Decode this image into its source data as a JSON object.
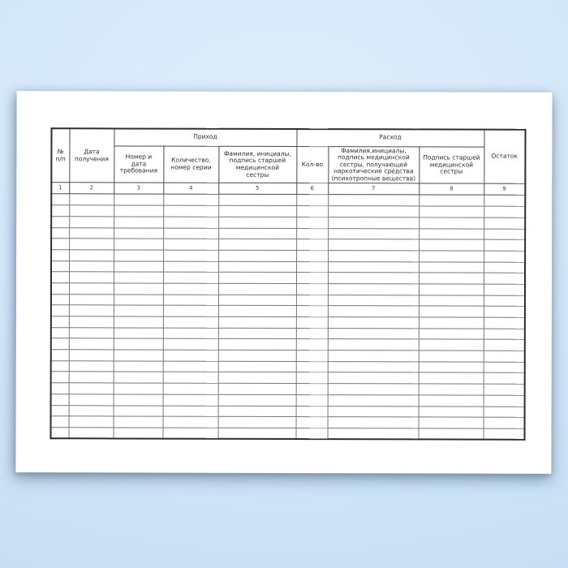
{
  "page": {
    "background_color": "#cde3f7",
    "paper_color": "#ffffff",
    "border_color": "#2e2e2e"
  },
  "table": {
    "group_headers": {
      "prihod": "Приход",
      "rashod": "Расход"
    },
    "headers": {
      "no": "№\nп/п",
      "date": "Дата\nполучения",
      "req_number": "Номер и\nдата\nтребования",
      "quantity_series": "Количество,\nномер серии",
      "senior_nurse_sign_in": "Фамилия, инициалы,\nподпись старшей\nмедицинской\nсестры",
      "qty": "Кол-во",
      "nurse_sign_out": "Фамилия,инициалы,\nподпись медицинской\nсестры, получающей\nнаркотические средства\n(психотропные вещества)",
      "senior_nurse_sign": "Подпись старшей\nмедицинской\nсестры",
      "balance": "Остаток"
    },
    "column_numbers": [
      "1",
      "2",
      "3",
      "4",
      "5",
      "6",
      "7",
      "8",
      "9"
    ],
    "empty_row_count": 22
  }
}
